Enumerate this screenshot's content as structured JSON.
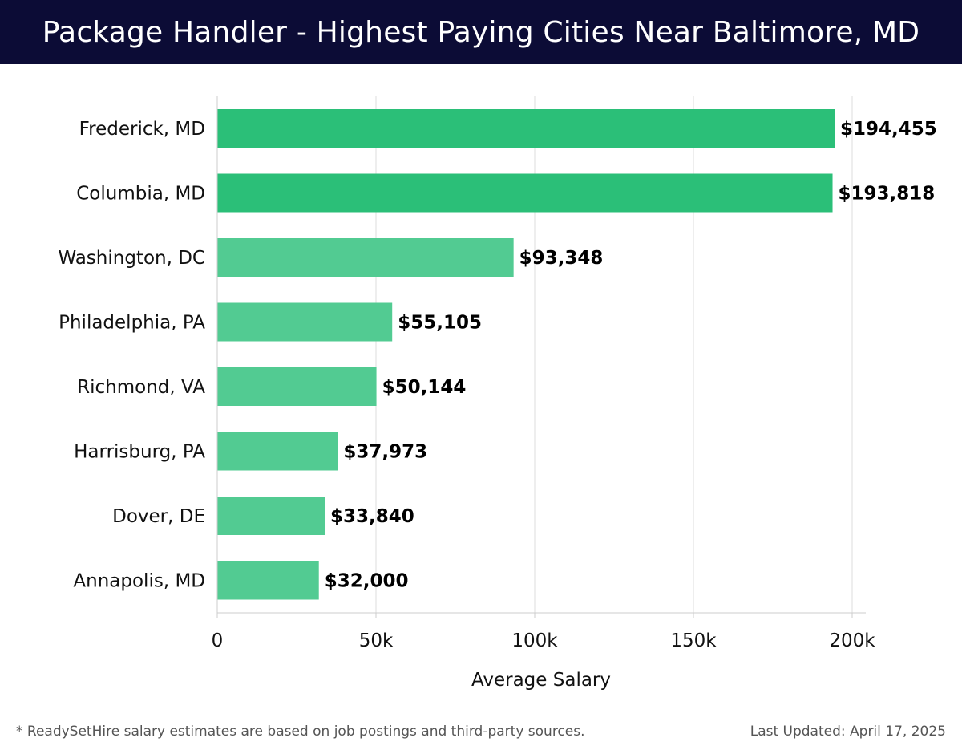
{
  "header": {
    "title": "Package Handler - Highest Paying Cities Near Baltimore, MD"
  },
  "chart_data": {
    "type": "bar",
    "orientation": "horizontal",
    "title": "Package Handler - Highest Paying Cities Near Baltimore, MD",
    "xlabel": "Average Salary",
    "ylabel": "",
    "categories": [
      "Frederick, MD",
      "Columbia, MD",
      "Washington, DC",
      "Philadelphia, PA",
      "Richmond, VA",
      "Harrisburg, PA",
      "Dover, DE",
      "Annapolis, MD"
    ],
    "values": [
      194455,
      193818,
      93348,
      55105,
      50144,
      37973,
      33840,
      32000
    ],
    "value_labels": [
      "$194,455",
      "$193,818",
      "$93,348",
      "$55,105",
      "$50,144",
      "$37,973",
      "$33,840",
      "$32,000"
    ],
    "xlim": [
      0,
      205000
    ],
    "x_ticks": [
      0,
      50000,
      100000,
      150000,
      200000
    ],
    "x_tick_labels": [
      "0",
      "50k",
      "100k",
      "150k",
      "200k"
    ],
    "grid": "vertical",
    "legend": "none",
    "colors": {
      "top": "#2bbf78",
      "rest": "#52cb92",
      "grid": "#dedede",
      "axis": "#cccccc",
      "text": "#111111"
    }
  },
  "footer": {
    "note": "* ReadySetHire salary estimates are based on job postings and third-party sources.",
    "updated": "Last Updated: April 17, 2025"
  }
}
